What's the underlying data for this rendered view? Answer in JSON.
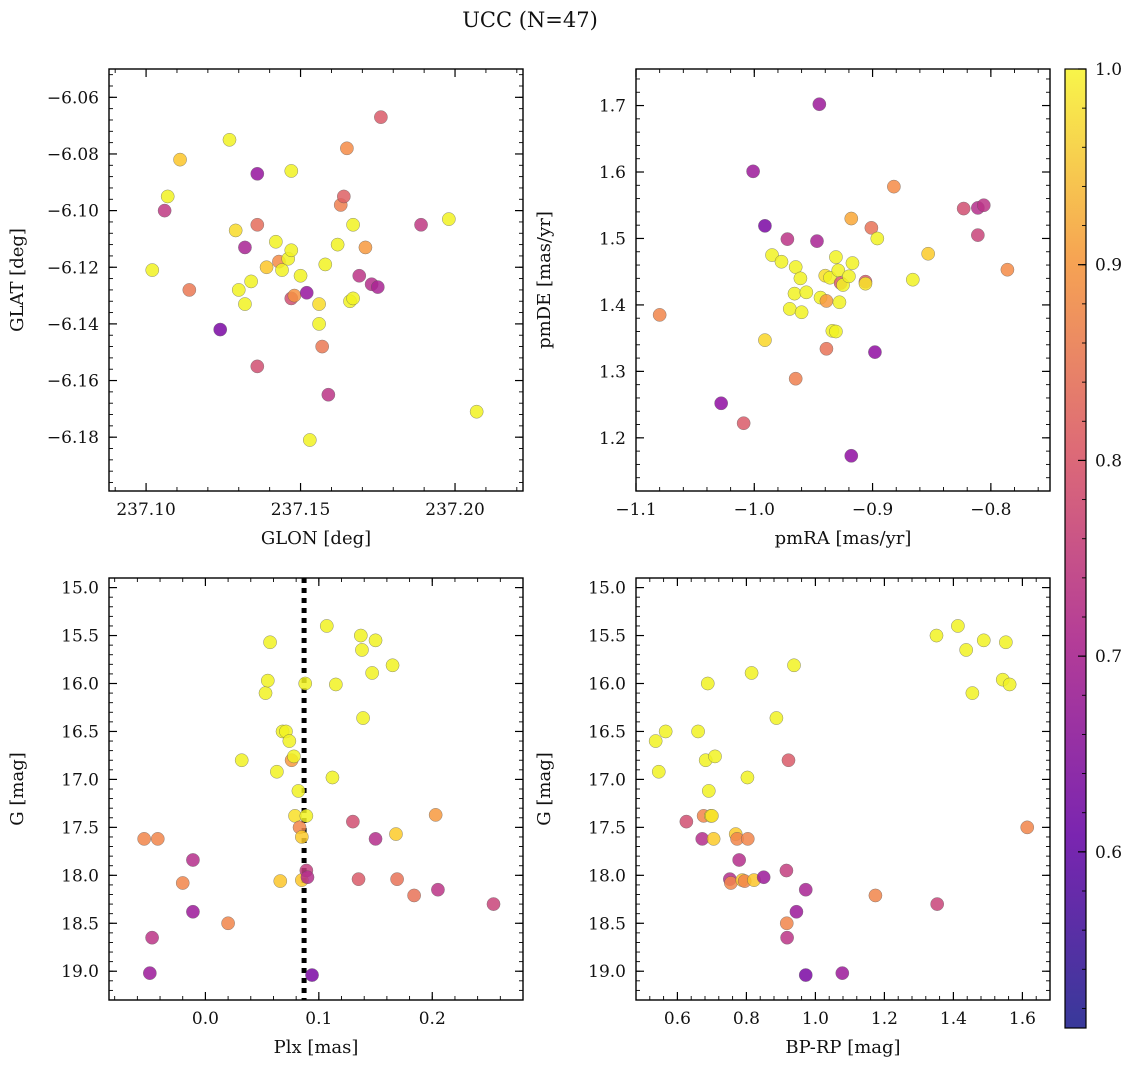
{
  "title": "UCC (N=47)",
  "colorbar": {
    "range": [
      0.51,
      1.0
    ],
    "ticks": [
      "0.6",
      "0.7",
      "0.8",
      "0.9",
      "1.0"
    ],
    "tick_values": [
      0.6,
      0.7,
      0.8,
      0.9,
      1.0
    ],
    "colormap": "plasma"
  },
  "chart_data": [
    {
      "type": "scatter",
      "id": "glon-glat",
      "xlabel": "GLON [deg]",
      "ylabel": "GLAT [deg]",
      "xlim": [
        237.088,
        237.222
      ],
      "ylim": [
        -6.199,
        -6.05
      ],
      "y_inverted": false,
      "xticks": [
        237.1,
        237.15,
        237.2
      ],
      "xtick_labels": [
        "237.10",
        "237.15",
        "237.20"
      ],
      "yticks": [
        -6.18,
        -6.16,
        -6.14,
        -6.12,
        -6.1,
        -6.08,
        -6.06
      ],
      "ytick_labels": [
        "−6.18",
        "−6.16",
        "−6.14",
        "−6.12",
        "−6.10",
        "−6.08",
        "−6.06"
      ],
      "points": [
        {
          "x": 237.102,
          "y": -6.121,
          "c": 0.98
        },
        {
          "x": 237.106,
          "y": -6.1,
          "c": 0.64
        },
        {
          "x": 237.107,
          "y": -6.095,
          "c": 0.98
        },
        {
          "x": 237.111,
          "y": -6.082,
          "c": 0.87
        },
        {
          "x": 237.114,
          "y": -6.128,
          "c": 0.75
        },
        {
          "x": 237.124,
          "y": -6.142,
          "c": 0.53
        },
        {
          "x": 237.127,
          "y": -6.075,
          "c": 0.98
        },
        {
          "x": 237.129,
          "y": -6.107,
          "c": 0.91
        },
        {
          "x": 237.13,
          "y": -6.128,
          "c": 0.98
        },
        {
          "x": 237.132,
          "y": -6.133,
          "c": 0.98
        },
        {
          "x": 237.132,
          "y": -6.113,
          "c": 0.6
        },
        {
          "x": 237.134,
          "y": -6.125,
          "c": 0.98
        },
        {
          "x": 237.136,
          "y": -6.087,
          "c": 0.57
        },
        {
          "x": 237.136,
          "y": -6.105,
          "c": 0.73
        },
        {
          "x": 237.136,
          "y": -6.155,
          "c": 0.68
        },
        {
          "x": 237.139,
          "y": -6.12,
          "c": 0.87
        },
        {
          "x": 237.142,
          "y": -6.111,
          "c": 0.98
        },
        {
          "x": 237.143,
          "y": -6.118,
          "c": 0.78
        },
        {
          "x": 237.144,
          "y": -6.121,
          "c": 0.98
        },
        {
          "x": 237.146,
          "y": -6.117,
          "c": 0.98
        },
        {
          "x": 237.147,
          "y": -6.131,
          "c": 0.68
        },
        {
          "x": 237.147,
          "y": -6.086,
          "c": 0.98
        },
        {
          "x": 237.147,
          "y": -6.114,
          "c": 0.98
        },
        {
          "x": 237.148,
          "y": -6.13,
          "c": 0.79
        },
        {
          "x": 237.15,
          "y": -6.123,
          "c": 0.98
        },
        {
          "x": 237.152,
          "y": -6.129,
          "c": 0.57
        },
        {
          "x": 237.153,
          "y": -6.181,
          "c": 0.98
        },
        {
          "x": 237.156,
          "y": -6.133,
          "c": 0.91
        },
        {
          "x": 237.156,
          "y": -6.14,
          "c": 0.98
        },
        {
          "x": 237.157,
          "y": -6.148,
          "c": 0.75
        },
        {
          "x": 237.158,
          "y": -6.119,
          "c": 0.98
        },
        {
          "x": 237.159,
          "y": -6.165,
          "c": 0.63
        },
        {
          "x": 237.162,
          "y": -6.112,
          "c": 0.98
        },
        {
          "x": 237.163,
          "y": -6.098,
          "c": 0.76
        },
        {
          "x": 237.164,
          "y": -6.095,
          "c": 0.71
        },
        {
          "x": 237.165,
          "y": -6.078,
          "c": 0.78
        },
        {
          "x": 237.166,
          "y": -6.132,
          "c": 0.98
        },
        {
          "x": 237.167,
          "y": -6.105,
          "c": 0.98
        },
        {
          "x": 237.167,
          "y": -6.131,
          "c": 0.98
        },
        {
          "x": 237.169,
          "y": -6.123,
          "c": 0.63
        },
        {
          "x": 237.171,
          "y": -6.113,
          "c": 0.8
        },
        {
          "x": 237.173,
          "y": -6.126,
          "c": 0.62
        },
        {
          "x": 237.175,
          "y": -6.127,
          "c": 0.6
        },
        {
          "x": 237.176,
          "y": -6.067,
          "c": 0.7
        },
        {
          "x": 237.189,
          "y": -6.105,
          "c": 0.64
        },
        {
          "x": 237.198,
          "y": -6.103,
          "c": 0.98
        },
        {
          "x": 237.207,
          "y": -6.171,
          "c": 0.98
        }
      ]
    },
    {
      "type": "scatter",
      "id": "pmra-pmde",
      "xlabel": "pmRA [mas/yr]",
      "ylabel": "pmDE [mas/yr]",
      "xlim": [
        -1.1,
        -0.75
      ],
      "ylim": [
        1.12,
        1.755
      ],
      "y_inverted": false,
      "xticks": [
        -1.1,
        -1.0,
        -0.9,
        -0.8
      ],
      "xtick_labels": [
        "−1.1",
        "−1.0",
        "−0.9",
        "−0.8"
      ],
      "yticks": [
        1.2,
        1.3,
        1.4,
        1.5,
        1.6,
        1.7
      ],
      "ytick_labels": [
        "1.2",
        "1.3",
        "1.4",
        "1.5",
        "1.6",
        "1.7"
      ],
      "points": [
        {
          "x": -1.08,
          "y": 1.385,
          "c": 0.77
        },
        {
          "x": -1.028,
          "y": 1.252,
          "c": 0.56
        },
        {
          "x": -1.009,
          "y": 1.222,
          "c": 0.7
        },
        {
          "x": -1.001,
          "y": 1.601,
          "c": 0.58
        },
        {
          "x": -0.991,
          "y": 1.519,
          "c": 0.53
        },
        {
          "x": -0.991,
          "y": 1.347,
          "c": 0.9
        },
        {
          "x": -0.985,
          "y": 1.475,
          "c": 0.98
        },
        {
          "x": -0.977,
          "y": 1.465,
          "c": 0.98
        },
        {
          "x": -0.972,
          "y": 1.499,
          "c": 0.63
        },
        {
          "x": -0.97,
          "y": 1.394,
          "c": 0.98
        },
        {
          "x": -0.966,
          "y": 1.417,
          "c": 0.98
        },
        {
          "x": -0.965,
          "y": 1.289,
          "c": 0.76
        },
        {
          "x": -0.965,
          "y": 1.457,
          "c": 0.98
        },
        {
          "x": -0.961,
          "y": 1.44,
          "c": 0.98
        },
        {
          "x": -0.96,
          "y": 1.389,
          "c": 0.98
        },
        {
          "x": -0.956,
          "y": 1.419,
          "c": 0.98
        },
        {
          "x": -0.947,
          "y": 1.496,
          "c": 0.6
        },
        {
          "x": -0.945,
          "y": 1.702,
          "c": 0.58
        },
        {
          "x": -0.944,
          "y": 1.411,
          "c": 0.98
        },
        {
          "x": -0.94,
          "y": 1.444,
          "c": 0.92
        },
        {
          "x": -0.939,
          "y": 1.406,
          "c": 0.8
        },
        {
          "x": -0.939,
          "y": 1.334,
          "c": 0.74
        },
        {
          "x": -0.936,
          "y": 1.441,
          "c": 0.98
        },
        {
          "x": -0.934,
          "y": 1.361,
          "c": 0.98
        },
        {
          "x": -0.931,
          "y": 1.36,
          "c": 0.98
        },
        {
          "x": -0.931,
          "y": 1.472,
          "c": 0.98
        },
        {
          "x": -0.929,
          "y": 1.452,
          "c": 0.98
        },
        {
          "x": -0.928,
          "y": 1.404,
          "c": 0.98
        },
        {
          "x": -0.927,
          "y": 1.433,
          "c": 0.7
        },
        {
          "x": -0.925,
          "y": 1.43,
          "c": 0.98
        },
        {
          "x": -0.92,
          "y": 1.443,
          "c": 0.98
        },
        {
          "x": -0.918,
          "y": 1.53,
          "c": 0.82
        },
        {
          "x": -0.918,
          "y": 1.173,
          "c": 0.56
        },
        {
          "x": -0.917,
          "y": 1.463,
          "c": 0.98
        },
        {
          "x": -0.906,
          "y": 1.435,
          "c": 0.7
        },
        {
          "x": -0.906,
          "y": 1.432,
          "c": 0.93
        },
        {
          "x": -0.901,
          "y": 1.516,
          "c": 0.74
        },
        {
          "x": -0.898,
          "y": 1.329,
          "c": 0.56
        },
        {
          "x": -0.896,
          "y": 1.5,
          "c": 0.98
        },
        {
          "x": -0.882,
          "y": 1.578,
          "c": 0.78
        },
        {
          "x": -0.866,
          "y": 1.438,
          "c": 0.98
        },
        {
          "x": -0.853,
          "y": 1.477,
          "c": 0.88
        },
        {
          "x": -0.823,
          "y": 1.545,
          "c": 0.68
        },
        {
          "x": -0.811,
          "y": 1.546,
          "c": 0.62
        },
        {
          "x": -0.811,
          "y": 1.505,
          "c": 0.66
        },
        {
          "x": -0.806,
          "y": 1.55,
          "c": 0.63
        },
        {
          "x": -0.786,
          "y": 1.453,
          "c": 0.78
        }
      ]
    },
    {
      "type": "scatter",
      "id": "plx-g",
      "xlabel": "Plx [mas]",
      "ylabel": "G [mag]",
      "xlim": [
        -0.085,
        0.28
      ],
      "ylim": [
        15.0,
        19.3
      ],
      "ylim_display_top": 14.9,
      "y_inverted": true,
      "vline": {
        "x": 0.087,
        "style": "dotted"
      },
      "xticks": [
        0.0,
        0.1,
        0.2
      ],
      "xtick_labels": [
        "0.0",
        "0.1",
        "0.2"
      ],
      "yticks": [
        15.0,
        15.5,
        16.0,
        16.5,
        17.0,
        17.5,
        18.0,
        18.5,
        19.0
      ],
      "ytick_labels": [
        "15.0",
        "15.5",
        "16.0",
        "16.5",
        "17.0",
        "17.5",
        "18.0",
        "18.5",
        "19.0"
      ],
      "points": [
        {
          "x": -0.054,
          "y": 17.62,
          "c": 0.77
        },
        {
          "x": -0.049,
          "y": 19.02,
          "c": 0.58
        },
        {
          "x": -0.047,
          "y": 18.65,
          "c": 0.63
        },
        {
          "x": -0.042,
          "y": 17.62,
          "c": 0.77
        },
        {
          "x": -0.02,
          "y": 18.08,
          "c": 0.77
        },
        {
          "x": -0.011,
          "y": 17.84,
          "c": 0.62
        },
        {
          "x": -0.011,
          "y": 18.38,
          "c": 0.58
        },
        {
          "x": 0.02,
          "y": 18.5,
          "c": 0.77
        },
        {
          "x": 0.032,
          "y": 16.8,
          "c": 0.98
        },
        {
          "x": 0.053,
          "y": 16.1,
          "c": 0.98
        },
        {
          "x": 0.055,
          "y": 15.97,
          "c": 0.98
        },
        {
          "x": 0.057,
          "y": 15.57,
          "c": 0.98
        },
        {
          "x": 0.063,
          "y": 16.92,
          "c": 0.98
        },
        {
          "x": 0.066,
          "y": 18.06,
          "c": 0.87
        },
        {
          "x": 0.068,
          "y": 16.5,
          "c": 0.98
        },
        {
          "x": 0.071,
          "y": 16.5,
          "c": 0.98
        },
        {
          "x": 0.074,
          "y": 16.6,
          "c": 0.98
        },
        {
          "x": 0.076,
          "y": 16.8,
          "c": 0.8
        },
        {
          "x": 0.078,
          "y": 16.76,
          "c": 0.98
        },
        {
          "x": 0.079,
          "y": 17.38,
          "c": 0.92
        },
        {
          "x": 0.082,
          "y": 17.12,
          "c": 0.98
        },
        {
          "x": 0.083,
          "y": 17.5,
          "c": 0.77
        },
        {
          "x": 0.085,
          "y": 18.05,
          "c": 0.87
        },
        {
          "x": 0.085,
          "y": 17.6,
          "c": 0.88
        },
        {
          "x": 0.088,
          "y": 16.0,
          "c": 0.98
        },
        {
          "x": 0.089,
          "y": 17.38,
          "c": 0.98
        },
        {
          "x": 0.089,
          "y": 17.95,
          "c": 0.65
        },
        {
          "x": 0.09,
          "y": 18.02,
          "c": 0.62
        },
        {
          "x": 0.094,
          "y": 19.04,
          "c": 0.53
        },
        {
          "x": 0.107,
          "y": 15.4,
          "c": 0.98
        },
        {
          "x": 0.112,
          "y": 16.98,
          "c": 0.98
        },
        {
          "x": 0.115,
          "y": 16.01,
          "c": 0.98
        },
        {
          "x": 0.13,
          "y": 17.44,
          "c": 0.68
        },
        {
          "x": 0.135,
          "y": 18.04,
          "c": 0.7
        },
        {
          "x": 0.137,
          "y": 15.5,
          "c": 0.98
        },
        {
          "x": 0.138,
          "y": 15.65,
          "c": 0.98
        },
        {
          "x": 0.139,
          "y": 16.36,
          "c": 0.98
        },
        {
          "x": 0.147,
          "y": 15.89,
          "c": 0.98
        },
        {
          "x": 0.15,
          "y": 15.55,
          "c": 0.98
        },
        {
          "x": 0.15,
          "y": 17.62,
          "c": 0.62
        },
        {
          "x": 0.165,
          "y": 15.81,
          "c": 0.98
        },
        {
          "x": 0.168,
          "y": 17.57,
          "c": 0.88
        },
        {
          "x": 0.169,
          "y": 18.04,
          "c": 0.74
        },
        {
          "x": 0.184,
          "y": 18.21,
          "c": 0.74
        },
        {
          "x": 0.203,
          "y": 17.37,
          "c": 0.8
        },
        {
          "x": 0.205,
          "y": 18.15,
          "c": 0.63
        },
        {
          "x": 0.254,
          "y": 18.3,
          "c": 0.66
        }
      ]
    },
    {
      "type": "scatter",
      "id": "bprp-g",
      "xlabel": "BP-RP [mag]",
      "ylabel": "G [mag]",
      "xlim": [
        0.48,
        1.68
      ],
      "ylim": [
        15.0,
        19.3
      ],
      "ylim_display_top": 14.9,
      "y_inverted": true,
      "xticks": [
        0.6,
        0.8,
        1.0,
        1.2,
        1.4,
        1.6
      ],
      "xtick_labels": [
        "0.6",
        "0.8",
        "1.0",
        "1.2",
        "1.4",
        "1.6"
      ],
      "yticks": [
        15.0,
        15.5,
        16.0,
        16.5,
        17.0,
        17.5,
        18.0,
        18.5,
        19.0
      ],
      "ytick_labels": [
        "15.0",
        "15.5",
        "16.0",
        "16.5",
        "17.0",
        "17.5",
        "18.0",
        "18.5",
        "19.0"
      ],
      "points": [
        {
          "x": 0.537,
          "y": 16.6,
          "c": 0.98
        },
        {
          "x": 0.546,
          "y": 16.92,
          "c": 0.98
        },
        {
          "x": 0.566,
          "y": 16.5,
          "c": 0.98
        },
        {
          "x": 0.626,
          "y": 17.44,
          "c": 0.68
        },
        {
          "x": 0.66,
          "y": 16.5,
          "c": 0.98
        },
        {
          "x": 0.672,
          "y": 17.62,
          "c": 0.62
        },
        {
          "x": 0.676,
          "y": 17.38,
          "c": 0.77
        },
        {
          "x": 0.682,
          "y": 16.8,
          "c": 0.98
        },
        {
          "x": 0.688,
          "y": 16.0,
          "c": 0.98
        },
        {
          "x": 0.691,
          "y": 17.12,
          "c": 0.98
        },
        {
          "x": 0.697,
          "y": 17.38,
          "c": 0.98
        },
        {
          "x": 0.7,
          "y": 17.38,
          "c": 0.92
        },
        {
          "x": 0.705,
          "y": 17.62,
          "c": 0.88
        },
        {
          "x": 0.709,
          "y": 16.76,
          "c": 0.98
        },
        {
          "x": 0.752,
          "y": 18.04,
          "c": 0.62
        },
        {
          "x": 0.755,
          "y": 18.08,
          "c": 0.77
        },
        {
          "x": 0.769,
          "y": 17.57,
          "c": 0.88
        },
        {
          "x": 0.773,
          "y": 17.62,
          "c": 0.77
        },
        {
          "x": 0.779,
          "y": 17.84,
          "c": 0.62
        },
        {
          "x": 0.788,
          "y": 18.05,
          "c": 0.87
        },
        {
          "x": 0.795,
          "y": 18.06,
          "c": 0.77
        },
        {
          "x": 0.803,
          "y": 16.98,
          "c": 0.98
        },
        {
          "x": 0.804,
          "y": 17.62,
          "c": 0.77
        },
        {
          "x": 0.815,
          "y": 15.89,
          "c": 0.98
        },
        {
          "x": 0.822,
          "y": 18.05,
          "c": 0.87
        },
        {
          "x": 0.85,
          "y": 18.02,
          "c": 0.58
        },
        {
          "x": 0.887,
          "y": 16.36,
          "c": 0.98
        },
        {
          "x": 0.916,
          "y": 17.95,
          "c": 0.65
        },
        {
          "x": 0.917,
          "y": 18.5,
          "c": 0.77
        },
        {
          "x": 0.918,
          "y": 18.65,
          "c": 0.63
        },
        {
          "x": 0.922,
          "y": 16.8,
          "c": 0.7
        },
        {
          "x": 0.938,
          "y": 15.81,
          "c": 0.98
        },
        {
          "x": 0.945,
          "y": 18.38,
          "c": 0.58
        },
        {
          "x": 0.972,
          "y": 18.15,
          "c": 0.6
        },
        {
          "x": 0.972,
          "y": 19.04,
          "c": 0.53
        },
        {
          "x": 1.078,
          "y": 19.02,
          "c": 0.58
        },
        {
          "x": 1.174,
          "y": 18.21,
          "c": 0.77
        },
        {
          "x": 1.351,
          "y": 15.5,
          "c": 0.98
        },
        {
          "x": 1.353,
          "y": 18.3,
          "c": 0.66
        },
        {
          "x": 1.413,
          "y": 15.4,
          "c": 0.98
        },
        {
          "x": 1.437,
          "y": 15.65,
          "c": 0.98
        },
        {
          "x": 1.455,
          "y": 16.1,
          "c": 0.98
        },
        {
          "x": 1.488,
          "y": 15.55,
          "c": 0.98
        },
        {
          "x": 1.543,
          "y": 15.96,
          "c": 0.98
        },
        {
          "x": 1.552,
          "y": 15.57,
          "c": 0.98
        },
        {
          "x": 1.563,
          "y": 16.01,
          "c": 0.98
        },
        {
          "x": 1.614,
          "y": 17.5,
          "c": 0.77
        }
      ]
    }
  ]
}
